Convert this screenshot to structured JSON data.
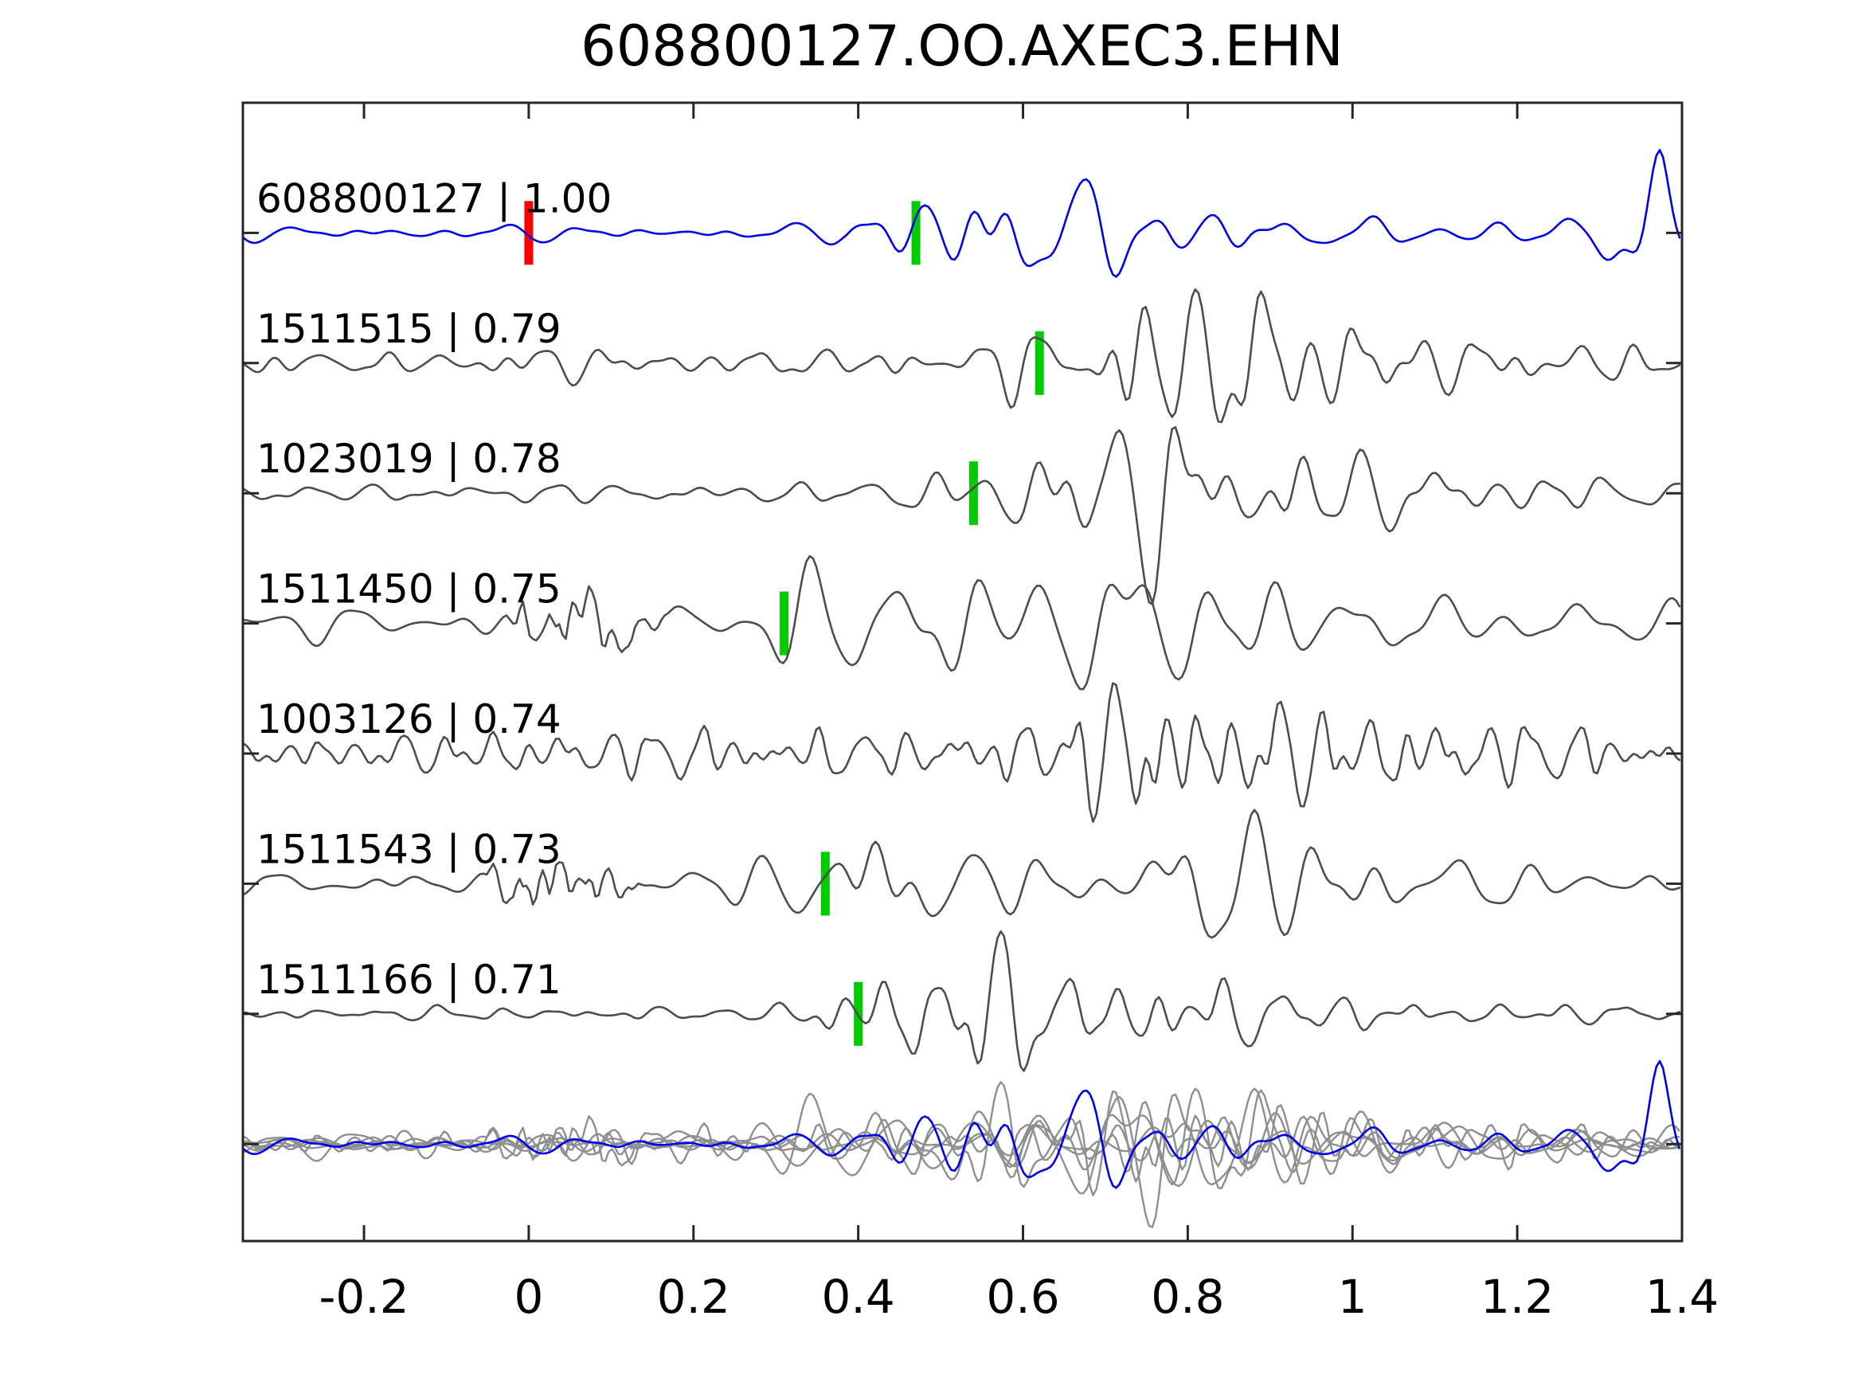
{
  "title": "608800127.OO.AXEC3.EHN",
  "chart_data": {
    "type": "line",
    "title": "608800127.OO.AXEC3.EHN",
    "xlabel": "",
    "ylabel": "",
    "grid": false,
    "x_axis": {
      "min": -0.347,
      "max": 1.4,
      "ticks": [
        {
          "value": -0.2,
          "label": "-0.2"
        },
        {
          "value": 0,
          "label": "0"
        },
        {
          "value": 0.2,
          "label": "0.2"
        },
        {
          "value": 0.4,
          "label": "0.4"
        },
        {
          "value": 0.6,
          "label": "0.6"
        },
        {
          "value": 0.8,
          "label": "0.8"
        },
        {
          "value": 1,
          "label": "1"
        },
        {
          "value": 1.2,
          "label": "1.2"
        },
        {
          "value": 1.4,
          "label": "1.4"
        }
      ]
    },
    "colors": {
      "reference_trace": "#0000f0",
      "trace": "#4d4d4d",
      "overlay_trace": "#8f8f8f",
      "pick_marker": "#00cc00",
      "reference_marker": "#ff0000",
      "axis": "#262626",
      "text": "#000000",
      "background": "#ffffff"
    },
    "traces": [
      {
        "id": "608800127",
        "correlation": "1.00",
        "label": "608800127 | 1.00",
        "is_reference": true,
        "pick_time": 0.47,
        "reference_marker_time": 0.0,
        "components": [
          {
            "period": 0.09,
            "seed": 11,
            "envelope": [
              [
                -0.347,
                8
              ],
              [
                0.25,
                8
              ],
              [
                0.38,
                10
              ],
              [
                0.44,
                40
              ],
              [
                0.5,
                75
              ],
              [
                0.56,
                90
              ],
              [
                0.63,
                60
              ],
              [
                0.72,
                42
              ],
              [
                0.82,
                30
              ],
              [
                0.92,
                20
              ],
              [
                1.05,
                14
              ],
              [
                1.2,
                12
              ],
              [
                1.28,
                25
              ],
              [
                1.34,
                60
              ],
              [
                1.375,
                90
              ],
              [
                1.4,
                70
              ]
            ]
          }
        ]
      },
      {
        "id": "1511515",
        "correlation": "0.79",
        "label": "1511515 | 0.79",
        "is_reference": false,
        "pick_time": 0.62,
        "reference_marker_time": null,
        "components": [
          {
            "period": 0.065,
            "seed": 22,
            "envelope": [
              [
                -0.347,
                12
              ],
              [
                -0.25,
                14
              ],
              [
                -0.15,
                10
              ],
              [
                -0.05,
                16
              ],
              [
                0.05,
                20
              ],
              [
                0.15,
                12
              ],
              [
                0.3,
                13
              ],
              [
                0.45,
                16
              ],
              [
                0.55,
                25
              ],
              [
                0.62,
                40
              ],
              [
                0.7,
                65
              ],
              [
                0.78,
                92
              ],
              [
                0.86,
                88
              ],
              [
                0.95,
                65
              ],
              [
                1.05,
                38
              ],
              [
                1.15,
                26
              ],
              [
                1.25,
                22
              ],
              [
                1.4,
                18
              ]
            ]
          }
        ]
      },
      {
        "id": "1023019",
        "correlation": "0.78",
        "label": "1023019 | 0.78",
        "is_reference": false,
        "pick_time": 0.54,
        "reference_marker_time": null,
        "components": [
          {
            "period": 0.075,
            "seed": 33,
            "envelope": [
              [
                -0.347,
                8
              ],
              [
                -0.2,
                9
              ],
              [
                0.0,
                11
              ],
              [
                0.2,
                9
              ],
              [
                0.35,
                12
              ],
              [
                0.48,
                20
              ],
              [
                0.54,
                32
              ],
              [
                0.6,
                50
              ],
              [
                0.68,
                70
              ],
              [
                0.76,
                95
              ],
              [
                0.84,
                92
              ],
              [
                0.93,
                60
              ],
              [
                1.02,
                40
              ],
              [
                1.12,
                30
              ],
              [
                1.22,
                24
              ],
              [
                1.32,
                18
              ],
              [
                1.4,
                14
              ]
            ]
          }
        ]
      },
      {
        "id": "1511450",
        "correlation": "0.75",
        "label": "1511450 | 0.75",
        "is_reference": false,
        "pick_time": 0.31,
        "reference_marker_time": null,
        "components": [
          {
            "period": 0.095,
            "seed": 44,
            "envelope": [
              [
                -0.347,
                14
              ],
              [
                -0.25,
                18
              ],
              [
                -0.15,
                16
              ],
              [
                -0.05,
                20
              ],
              [
                0.05,
                22
              ],
              [
                0.15,
                24
              ],
              [
                0.22,
                28
              ],
              [
                0.28,
                40
              ],
              [
                0.33,
                60
              ],
              [
                0.4,
                82
              ],
              [
                0.48,
                70
              ],
              [
                0.56,
                60
              ],
              [
                0.64,
                70
              ],
              [
                0.72,
                60
              ],
              [
                0.8,
                85
              ],
              [
                0.88,
                60
              ],
              [
                0.96,
                40
              ],
              [
                1.08,
                28
              ],
              [
                1.2,
                22
              ],
              [
                1.3,
                24
              ],
              [
                1.4,
                30
              ]
            ]
          },
          {
            "period": 0.028,
            "seed": 45,
            "envelope": [
              [
                -0.03,
                0
              ],
              [
                0.01,
                38
              ],
              [
                0.06,
                32
              ],
              [
                0.12,
                14
              ],
              [
                0.18,
                0
              ]
            ]
          }
        ]
      },
      {
        "id": "1003126",
        "correlation": "0.74",
        "label": "1003126 | 0.74",
        "is_reference": false,
        "pick_time": null,
        "reference_marker_time": null,
        "components": [
          {
            "period": 0.048,
            "seed": 55,
            "envelope": [
              [
                -0.347,
                16
              ],
              [
                -0.25,
                22
              ],
              [
                -0.15,
                18
              ],
              [
                -0.05,
                28
              ],
              [
                0.05,
                24
              ],
              [
                0.15,
                28
              ],
              [
                0.25,
                32
              ],
              [
                0.35,
                26
              ],
              [
                0.45,
                24
              ],
              [
                0.55,
                30
              ],
              [
                0.63,
                42
              ],
              [
                0.7,
                70
              ],
              [
                0.76,
                90
              ],
              [
                0.83,
                65
              ],
              [
                0.92,
                55
              ],
              [
                1.0,
                48
              ],
              [
                1.1,
                42
              ],
              [
                1.2,
                35
              ],
              [
                1.3,
                30
              ],
              [
                1.4,
                24
              ]
            ]
          }
        ]
      },
      {
        "id": "1511543",
        "correlation": "0.73",
        "label": "1511543 | 0.73",
        "is_reference": false,
        "pick_time": 0.36,
        "reference_marker_time": null,
        "components": [
          {
            "period": 0.085,
            "seed": 66,
            "envelope": [
              [
                -0.347,
                10
              ],
              [
                -0.2,
                14
              ],
              [
                -0.1,
                12
              ],
              [
                0.0,
                15
              ],
              [
                0.1,
                13
              ],
              [
                0.2,
                15
              ],
              [
                0.28,
                28
              ],
              [
                0.34,
                48
              ],
              [
                0.4,
                85
              ],
              [
                0.46,
                60
              ],
              [
                0.54,
                35
              ],
              [
                0.64,
                28
              ],
              [
                0.72,
                35
              ],
              [
                0.8,
                60
              ],
              [
                0.88,
                75
              ],
              [
                0.96,
                65
              ],
              [
                1.05,
                38
              ],
              [
                1.15,
                26
              ],
              [
                1.25,
                18
              ],
              [
                1.35,
                14
              ],
              [
                1.4,
                16
              ]
            ]
          },
          {
            "period": 0.027,
            "seed": 67,
            "envelope": [
              [
                -0.06,
                0
              ],
              [
                -0.01,
                30
              ],
              [
                0.05,
                26
              ],
              [
                0.11,
                12
              ],
              [
                0.16,
                0
              ]
            ]
          }
        ]
      },
      {
        "id": "1511166",
        "correlation": "0.71",
        "label": "1511166 | 0.71",
        "is_reference": false,
        "pick_time": 0.4,
        "reference_marker_time": null,
        "components": [
          {
            "period": 0.065,
            "seed": 77,
            "envelope": [
              [
                -0.347,
                5
              ],
              [
                -0.2,
                6
              ],
              [
                -0.05,
                8
              ],
              [
                0.1,
                7
              ],
              [
                0.22,
                6
              ],
              [
                0.3,
                10
              ],
              [
                0.36,
                25
              ],
              [
                0.42,
                45
              ],
              [
                0.48,
                75
              ],
              [
                0.54,
                85
              ],
              [
                0.6,
                60
              ],
              [
                0.68,
                52
              ],
              [
                0.76,
                48
              ],
              [
                0.84,
                40
              ],
              [
                0.92,
                26
              ],
              [
                1.0,
                18
              ],
              [
                1.1,
                14
              ],
              [
                1.2,
                11
              ],
              [
                1.3,
                9
              ],
              [
                1.4,
                11
              ]
            ]
          }
        ]
      }
    ],
    "overlay": {
      "description": "all traces overlaid on the common time axis at the bottom row",
      "gray_scale": 0.75,
      "reference_scale": 1.0
    },
    "markers": {
      "pick_bar_height": 80,
      "pick_bar_width": 11
    }
  }
}
